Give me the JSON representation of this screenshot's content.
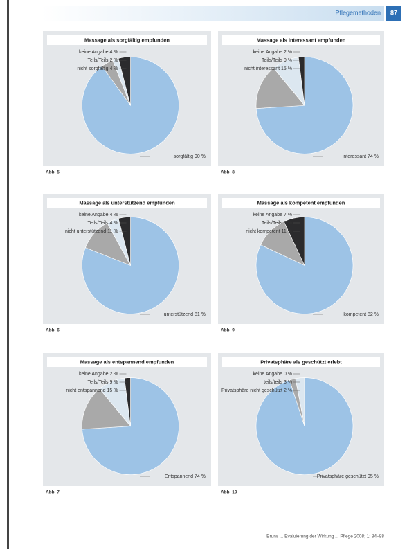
{
  "header": {
    "section": "Pflegemethoden",
    "page": "87"
  },
  "footer": "Bruns ... Evaluierung der Wirkung ... Pflege 2008; 1: 84–88",
  "chart_data": [
    {
      "type": "pie",
      "title": "Massage als sorgfältig empfunden",
      "caption": "Abb. 5",
      "categories": [
        "keine Angabe",
        "Teils/Teils",
        "nicht sorgfältig",
        "sorgfältig"
      ],
      "values": [
        4,
        2,
        4,
        90
      ],
      "value_labels": [
        "4 %",
        "2 %",
        "4 %",
        "90 %"
      ],
      "colors": [
        "#2b2b2d",
        "#dce7f0",
        "#a9a9a9",
        "#9dc3e6"
      ]
    },
    {
      "type": "pie",
      "title": "Massage als interessant empfunden",
      "caption": "Abb. 8",
      "categories": [
        "keine Angabe",
        "Teils/Teils",
        "nicht interessant",
        "interessant"
      ],
      "values": [
        2,
        9,
        15,
        74
      ],
      "value_labels": [
        "2 %",
        "9 %",
        "15 %",
        "74 %"
      ],
      "colors": [
        "#2b2b2d",
        "#dce7f0",
        "#a9a9a9",
        "#9dc3e6"
      ]
    },
    {
      "type": "pie",
      "title": "Massage als unterstützend empfunden",
      "caption": "Abb. 6",
      "categories": [
        "keine Angabe",
        "Teils/Teils",
        "nicht unterstützend",
        "unterstützend"
      ],
      "values": [
        4,
        4,
        11,
        81
      ],
      "value_labels": [
        "4 %",
        "4 %",
        "11 %",
        "81 %"
      ],
      "colors": [
        "#2b2b2d",
        "#dce7f0",
        "#a9a9a9",
        "#9dc3e6"
      ]
    },
    {
      "type": "pie",
      "title": "Massage als kompetent empfunden",
      "caption": "Abb. 9",
      "categories": [
        "keine Angabe",
        "Teils/Teils",
        "nicht kompetent",
        "kompetent"
      ],
      "values": [
        7,
        0,
        11,
        82
      ],
      "value_labels": [
        "7 %",
        "0 %",
        "11 %",
        "82 %"
      ],
      "colors": [
        "#2b2b2d",
        "#dce7f0",
        "#a9a9a9",
        "#9dc3e6"
      ]
    },
    {
      "type": "pie",
      "title": "Massage als entspannend empfunden",
      "caption": "Abb. 7",
      "categories": [
        "keine Angabe",
        "Teils/Teils",
        "nicht entspannend",
        "Entspannend"
      ],
      "values": [
        2,
        9,
        15,
        74
      ],
      "value_labels": [
        "2 %",
        "9 %",
        "15 %",
        "74 %"
      ],
      "colors": [
        "#2b2b2d",
        "#dce7f0",
        "#a9a9a9",
        "#9dc3e6"
      ]
    },
    {
      "type": "pie",
      "title": "Privatsphäre als geschützt erlebt",
      "caption": "Abb. 10",
      "categories": [
        "keine Angabe",
        "teils/teils",
        "Privatsphäre nicht geschützt",
        "Privatsphäre geschützt"
      ],
      "values": [
        0,
        3,
        2,
        95
      ],
      "value_labels": [
        "0 %",
        "3 %",
        "2 %",
        "95 %"
      ],
      "colors": [
        "#2b2b2d",
        "#dce7f0",
        "#a9a9a9",
        "#9dc3e6"
      ]
    }
  ]
}
